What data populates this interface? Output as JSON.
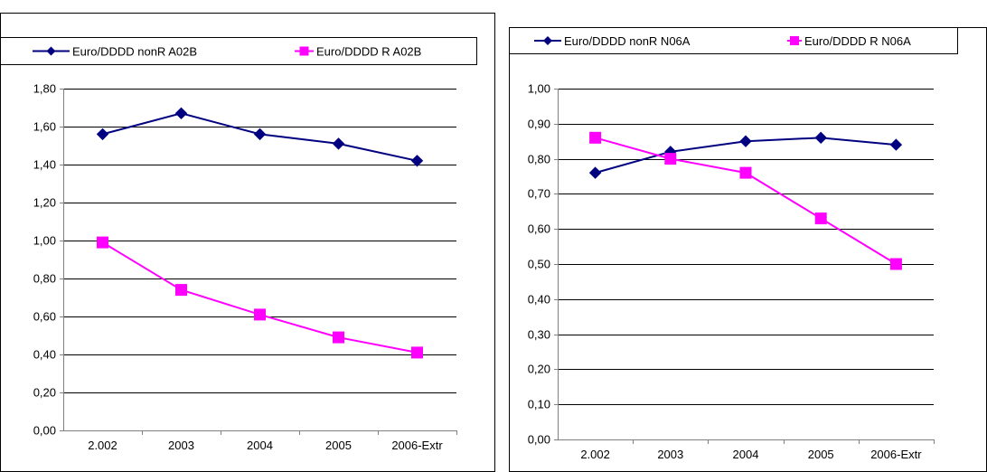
{
  "chart_data": [
    {
      "type": "line",
      "categories": [
        "2.002",
        "2003",
        "2004",
        "2005",
        "2006-Extr"
      ],
      "series": [
        {
          "name": "Euro/DDDD nonR A02B",
          "values": [
            1.56,
            1.67,
            1.56,
            1.51,
            1.42
          ],
          "color": "#000080",
          "marker": "diamond"
        },
        {
          "name": "Euro/DDDD R A02B",
          "values": [
            0.99,
            0.74,
            0.61,
            0.49,
            0.41
          ],
          "color": "#FF00FF",
          "marker": "square"
        }
      ],
      "y_ticks": [
        "0,00",
        "0,20",
        "0,40",
        "0,60",
        "0,80",
        "1,00",
        "1,20",
        "1,40",
        "1,60",
        "1,80"
      ],
      "ylim": [
        0,
        1.8
      ],
      "grid": true,
      "legend_position": "top"
    },
    {
      "type": "line",
      "categories": [
        "2.002",
        "2003",
        "2004",
        "2005",
        "2006-Extr"
      ],
      "series": [
        {
          "name": "Euro/DDDD nonR N06A",
          "values": [
            0.76,
            0.82,
            0.85,
            0.86,
            0.84
          ],
          "color": "#000080",
          "marker": "diamond"
        },
        {
          "name": "Euro/DDDD R N06A",
          "values": [
            0.86,
            0.8,
            0.76,
            0.63,
            0.5
          ],
          "color": "#FF00FF",
          "marker": "square"
        }
      ],
      "y_ticks": [
        "0,00",
        "0,10",
        "0,20",
        "0,30",
        "0,40",
        "0,50",
        "0,60",
        "0,70",
        "0,80",
        "0,90",
        "1,00"
      ],
      "ylim": [
        0,
        1.0
      ],
      "grid": true,
      "legend_position": "top"
    }
  ]
}
